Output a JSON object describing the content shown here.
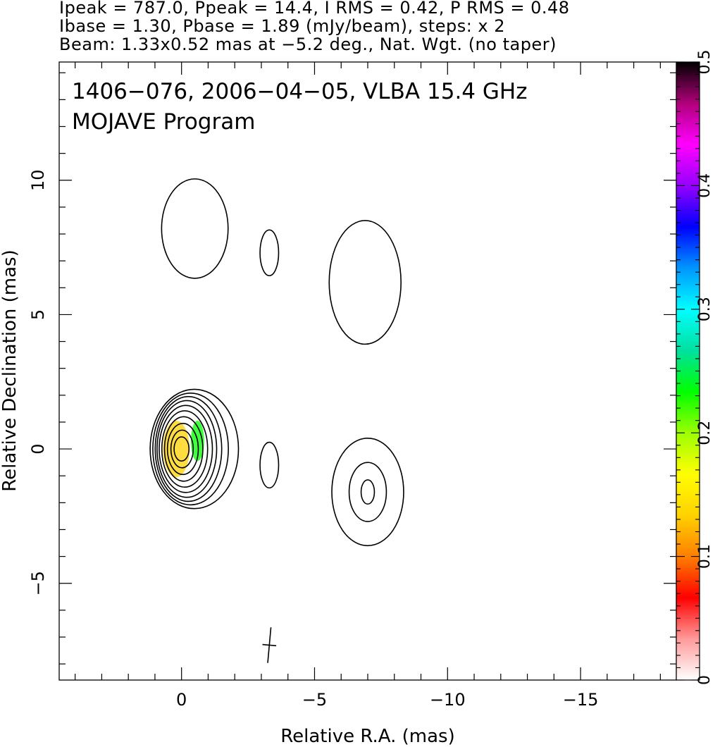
{
  "header": {
    "line1": "Ipeak = 787.0, Ppeak = 14.4, I RMS = 0.42, P RMS = 0.48",
    "line2": "Ibase = 1.30, Pbase = 1.89 (mJy/beam), steps: x 2",
    "line3": "Beam: 1.33x0.52 mas at −5.2 deg., Nat. Wgt. (no taper)"
  },
  "chart_data": {
    "type": "heatmap",
    "title": "1406−076, 2006−04−05, VLBA 15.4 GHz",
    "subtitle": "MOJAVE Program",
    "xlabel": "Relative R.A. (mas)",
    "ylabel": "Relative Declination (mas)",
    "xlim": [
      4.6,
      -18.6
    ],
    "ylim": [
      -8.6,
      14.4
    ],
    "x_ticks": [
      0,
      -5,
      -10,
      -15
    ],
    "x_tick_labels": [
      "0",
      "−5",
      "−10",
      "−15"
    ],
    "y_ticks": [
      -5,
      0,
      5,
      10
    ],
    "y_tick_labels": [
      "−5",
      "0",
      "5",
      "10"
    ],
    "colorbar": {
      "range": [
        0,
        0.5
      ],
      "ticks": [
        0,
        0.1,
        0.2,
        0.3,
        0.4,
        0.5
      ],
      "tick_labels": [
        "0",
        "0.1",
        "0.2",
        "0.3",
        "0.4",
        "0.5"
      ],
      "colors": [
        "#ffffff",
        "#ff9a9a",
        "#ff0000",
        "#ff7f00",
        "#ffd200",
        "#ffff00",
        "#9cff00",
        "#00ff00",
        "#00e0a0",
        "#00ffff",
        "#0096ff",
        "#0000ff",
        "#9600ff",
        "#ff00ff",
        "#b0007a",
        "#000000"
      ]
    },
    "beam": {
      "major_mas": 1.33,
      "minor_mas": 0.52,
      "pa_deg": -5.2,
      "x": -3.3,
      "y": -7.3
    },
    "contour_sets": [
      {
        "name": "core",
        "cx": 0.0,
        "cy": 0.0,
        "rx": [
          0.28,
          0.42,
          0.58,
          0.72,
          0.86,
          1.0,
          1.12,
          1.25,
          1.42,
          1.66
        ],
        "ry": [
          0.45,
          0.7,
          0.95,
          1.2,
          1.42,
          1.62,
          1.8,
          1.95,
          2.08,
          2.22
        ],
        "offset_x": [
          0,
          -0.02,
          -0.05,
          -0.08,
          -0.12,
          -0.16,
          -0.2,
          -0.26,
          -0.34,
          -0.48
        ]
      },
      {
        "name": "jet-knot",
        "cx": -7.0,
        "cy": -1.6,
        "rx": [
          0.25,
          0.7,
          1.35
        ],
        "ry": [
          0.45,
          1.1,
          2.0
        ]
      },
      {
        "name": "upper-source",
        "cx": -0.5,
        "cy": 8.2,
        "rx": [
          1.25
        ],
        "ry": [
          1.85
        ]
      },
      {
        "name": "upper-jet",
        "cx": -6.9,
        "cy": 6.2,
        "rx": [
          1.35
        ],
        "ry": [
          2.3
        ]
      },
      {
        "name": "small-feature-1",
        "cx": -3.3,
        "cy": 7.3,
        "rx": [
          0.35
        ],
        "ry": [
          0.85
        ]
      },
      {
        "name": "small-feature-2",
        "cx": -3.3,
        "cy": -0.6,
        "rx": [
          0.35
        ],
        "ry": [
          0.85
        ]
      }
    ],
    "polarization_blobs": [
      {
        "x": 0.2,
        "y": 0.0,
        "rx": 0.5,
        "ry": 1.05,
        "value": 0.06
      },
      {
        "x": -0.6,
        "y": 0.3,
        "rx": 0.25,
        "ry": 0.75,
        "value": 0.1
      }
    ]
  }
}
